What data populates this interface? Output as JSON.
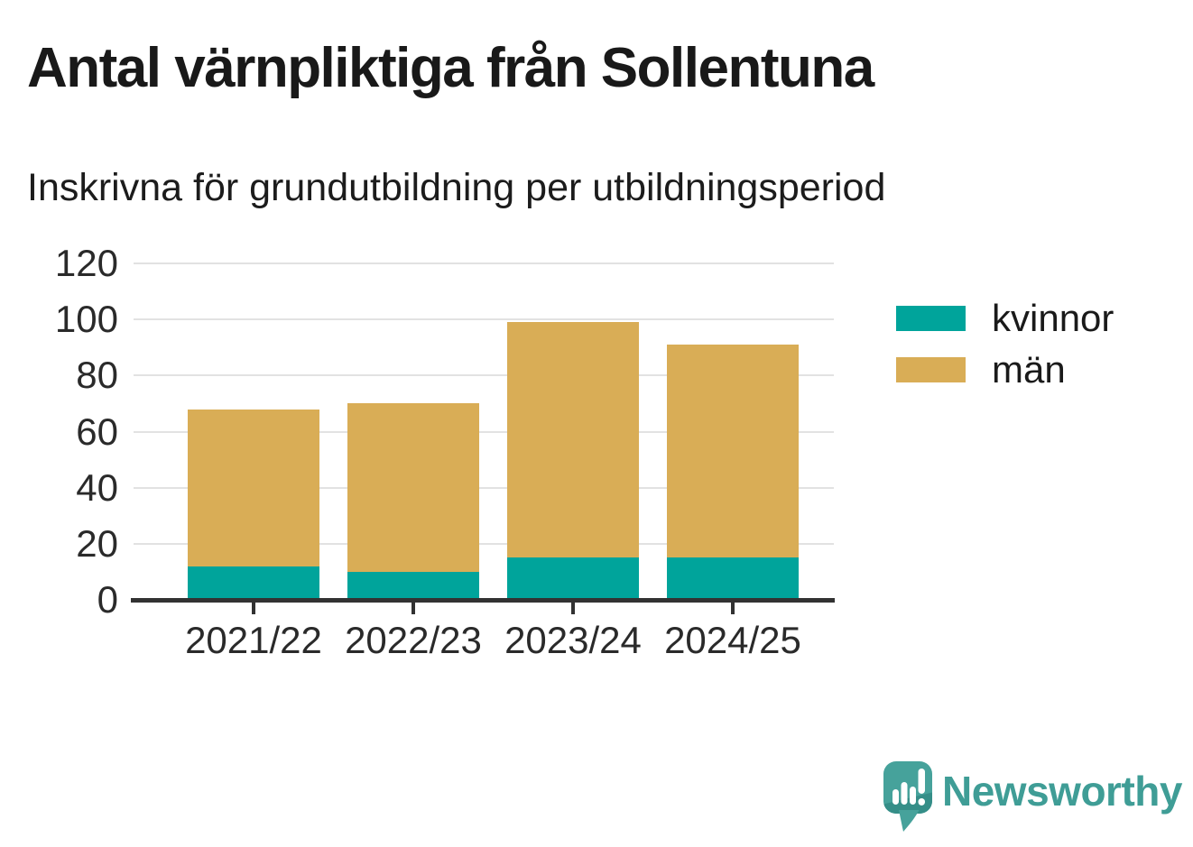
{
  "header": {
    "title": "Antal värnpliktiga från Sollentuna",
    "subtitle": "Inskrivna för grundutbildning per utbildningsperiod"
  },
  "chart_data": {
    "type": "bar",
    "stacked": true,
    "title": "Antal värnpliktiga från Sollentuna",
    "subtitle": "Inskrivna för grundutbildning per utbildningsperiod",
    "categories": [
      "2021/22",
      "2022/23",
      "2023/24",
      "2024/25"
    ],
    "series": [
      {
        "name": "kvinnor",
        "color": "#00a49b",
        "values": [
          12,
          10,
          15,
          15
        ]
      },
      {
        "name": "män",
        "color": "#d9ad56",
        "values": [
          56,
          60,
          84,
          76
        ]
      }
    ],
    "totals": [
      68,
      70,
      99,
      91
    ],
    "xlabel": "",
    "ylabel": "",
    "ylim": [
      0,
      120
    ],
    "yticks": [
      0,
      20,
      40,
      60,
      80,
      100,
      120
    ],
    "grid": "horizontal",
    "legend_position": "right"
  },
  "footer": {
    "brand": "Newsworthy",
    "logo_icon": "newsworthy-speech-bubble-bar-chart-icon",
    "brand_color": "#3f9d96"
  },
  "colors": {
    "kvinnor": "#00a49b",
    "man": "#d9ad56",
    "axis": "#323232",
    "grid": "#e2e2e2",
    "text": "#1a1a1a"
  }
}
